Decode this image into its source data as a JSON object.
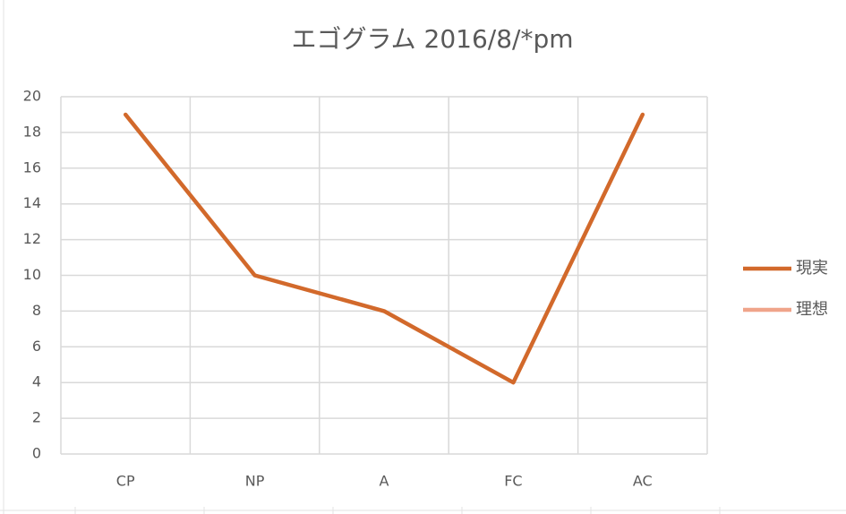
{
  "chart_data": {
    "type": "line",
    "title": "エゴグラム 2016/8/*pm",
    "categories": [
      "CP",
      "NP",
      "A",
      "FC",
      "AC"
    ],
    "series": [
      {
        "name": "現実",
        "color": "#d2692b",
        "values": [
          19,
          10,
          8,
          4,
          19
        ]
      },
      {
        "name": "理想",
        "color": "#f0a48a",
        "values": [
          null,
          null,
          null,
          null,
          null
        ]
      }
    ],
    "ylim": [
      0,
      20
    ],
    "yticks": [
      0,
      2,
      4,
      6,
      8,
      10,
      12,
      14,
      16,
      18,
      20
    ],
    "grid": true,
    "legend": "right"
  }
}
